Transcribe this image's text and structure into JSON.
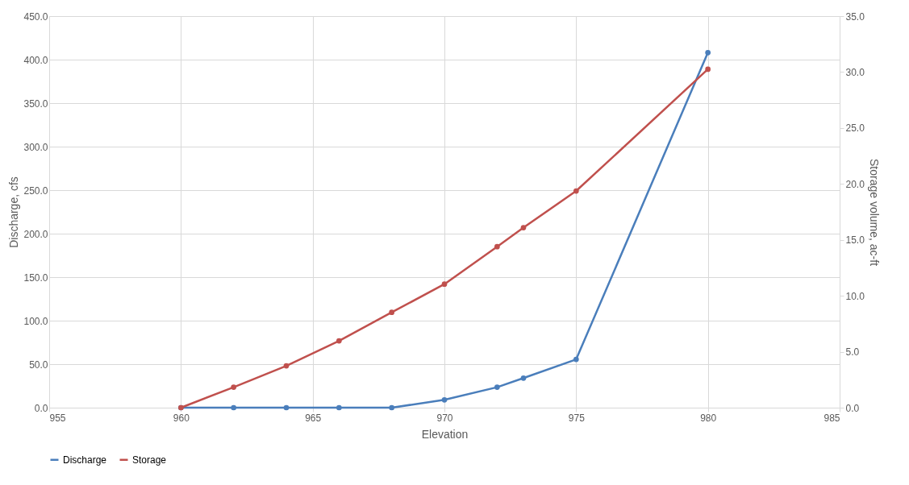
{
  "chart_data": {
    "type": "line",
    "xlabel": "Elevation",
    "ylabel": "Discharge, cfs",
    "y2label": "Storage volume, ac-ft",
    "x": [
      960,
      962,
      964,
      966,
      968,
      970,
      972,
      973,
      975,
      980
    ],
    "series": [
      {
        "name": "Discharge",
        "color": "#4a7ebb",
        "values": [
          0,
          0,
          0,
          0,
          0,
          9,
          23.5,
          34,
          55.5,
          408
        ]
      },
      {
        "name": "Storage",
        "color": "#c0504d",
        "axis": "y2",
        "values": [
          0,
          1.83,
          3.74,
          5.97,
          8.52,
          11.04,
          14.39,
          16.09,
          19.37,
          30.25
        ]
      }
    ],
    "xlim": [
      955,
      985
    ],
    "xticks": [
      955,
      960,
      965,
      970,
      975,
      980,
      985
    ],
    "ylim": [
      0,
      450
    ],
    "yticks": [
      {
        "value": 0,
        "label": "0.0"
      },
      {
        "value": 50,
        "label": "50.0"
      },
      {
        "value": 100,
        "label": "100.0"
      },
      {
        "value": 150,
        "label": "150.0"
      },
      {
        "value": 200,
        "label": "200.0"
      },
      {
        "value": 250,
        "label": "250.0"
      },
      {
        "value": 300,
        "label": "300.0"
      },
      {
        "value": 350,
        "label": "350.0"
      },
      {
        "value": 400,
        "label": "400.0"
      },
      {
        "value": 450,
        "label": "450.0"
      }
    ],
    "y2lim": [
      0,
      35
    ],
    "y2ticks": [
      {
        "value": 0,
        "label": "0.0"
      },
      {
        "value": 5,
        "label": "5.0"
      },
      {
        "value": 10,
        "label": "10.0"
      },
      {
        "value": 15,
        "label": "15.0"
      },
      {
        "value": 20,
        "label": "20.0"
      },
      {
        "value": 25,
        "label": "25.0"
      },
      {
        "value": 30,
        "label": "30.0"
      },
      {
        "value": 35,
        "label": "35.0"
      }
    ],
    "grid": true,
    "legend": "bottom",
    "marker": "circle",
    "line_style": "solid"
  }
}
